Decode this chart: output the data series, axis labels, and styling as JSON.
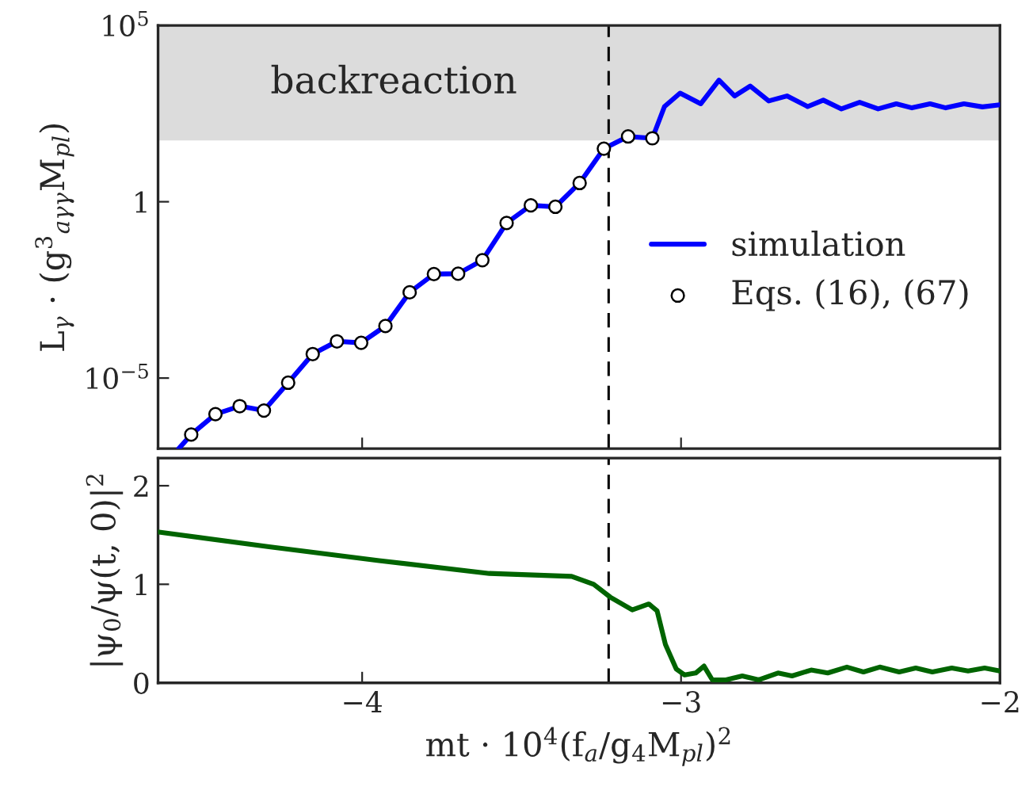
{
  "chart_data": [
    {
      "type": "line",
      "ylabel": "L$_{γ}$ · (g$^{3}$$_{aγγ}$M$_{pl}$)",
      "log": "y",
      "xlim": [
        -4.64,
        -2
      ],
      "xticks": [
        -4,
        -3,
        -2
      ],
      "ylim": [
        1e-07,
        100000
      ],
      "yticks": [
        {
          "value": 1e-05,
          "label": "10$^{−5}$"
        },
        1,
        {
          "value": 100000,
          "label": "10$^{5}$"
        }
      ],
      "tick_labels": "y",
      "legend": "right",
      "grid": false,
      "bands": [
        {
          "axis": "y",
          "from": 55,
          "to": 100000,
          "label": "backreaction",
          "color": "#dcdcdc"
        }
      ],
      "ref_lines": [
        {
          "axis": "x",
          "value": -3.227,
          "color": "#000000",
          "line_style": "dashed"
        }
      ],
      "series": [
        {
          "name": "simulation",
          "color": "#0000ff",
          "x": [
            -4.575,
            -4.536,
            -4.46,
            -4.384,
            -4.308,
            -4.232,
            -4.155,
            -4.079,
            -4.003,
            -3.927,
            -3.851,
            -3.775,
            -3.699,
            -3.623,
            -3.547,
            -3.471,
            -3.394,
            -3.318,
            -3.242,
            -3.166,
            -3.09,
            -3.052,
            -3.003,
            -2.938,
            -2.881,
            -2.832,
            -2.783,
            -2.725,
            -2.668,
            -2.603,
            -2.554,
            -2.497,
            -2.44,
            -2.382,
            -2.325,
            -2.276,
            -2.219,
            -2.17,
            -2.113,
            -2.055,
            -2.0
          ],
          "values": [
            1e-07,
            2.5e-07,
            9.5e-07,
            1.6e-06,
            1.2e-06,
            7.4e-06,
            4.8e-05,
            0.00011,
            0.0001,
            0.0003,
            0.0027,
            0.0089,
            0.0091,
            0.022,
            0.25,
            0.79,
            0.72,
            3.4,
            32,
            71,
            63,
            500,
            1200,
            600,
            2800,
            1000,
            1900,
            720,
            1000,
            500,
            760,
            430,
            660,
            430,
            600,
            460,
            600,
            460,
            600,
            490,
            560
          ]
        },
        {
          "name": "Eqs. (16), (67)",
          "type": "scatter",
          "marker": "circle",
          "color": "#ffffff",
          "x": [
            -4.536,
            -4.46,
            -4.384,
            -4.308,
            -4.232,
            -4.155,
            -4.079,
            -4.003,
            -3.927,
            -3.851,
            -3.775,
            -3.699,
            -3.623,
            -3.547,
            -3.471,
            -3.394,
            -3.318,
            -3.242,
            -3.166,
            -3.09
          ],
          "values": [
            2.5e-07,
            9.5e-07,
            1.6e-06,
            1.2e-06,
            7.4e-06,
            4.8e-05,
            0.00011,
            0.0001,
            0.0003,
            0.0027,
            0.0089,
            0.0091,
            0.022,
            0.25,
            0.79,
            0.72,
            3.4,
            32,
            71,
            63
          ]
        }
      ]
    },
    {
      "type": "line",
      "xlabel": "mt · 10$^{4}$(f$_{a}$/g$_{4}$M$_{pl}$)$^{2}$",
      "ylabel": "|ψ$_{0}$/ψ(t, 0)|$^{2}$",
      "xlim": [
        -4.64,
        -2
      ],
      "xticks": [
        {
          "value": -4,
          "label": "−4"
        },
        {
          "value": -3,
          "label": "−3"
        },
        {
          "value": -2,
          "label": "−2"
        }
      ],
      "ylim": [
        0,
        2.28
      ],
      "yticks": [
        0,
        1,
        2
      ],
      "grid": false,
      "ref_lines": [
        {
          "axis": "x",
          "value": -3.227,
          "color": "#000000",
          "line_style": "dashed"
        }
      ],
      "series": [
        {
          "color": "#006400",
          "x": [
            -4.637,
            -4.292,
            -3.947,
            -3.601,
            -3.343,
            -3.274,
            -3.222,
            -3.153,
            -3.101,
            -3.075,
            -3.049,
            -3.015,
            -2.989,
            -2.954,
            -2.928,
            -2.902,
            -2.859,
            -2.808,
            -2.756,
            -2.696,
            -2.652,
            -2.592,
            -2.54,
            -2.48,
            -2.428,
            -2.377,
            -2.316,
            -2.264,
            -2.212,
            -2.151,
            -2.1,
            -2.048,
            -2.0
          ],
          "values": [
            1.53,
            1.38,
            1.24,
            1.11,
            1.08,
            1.0,
            0.87,
            0.74,
            0.8,
            0.73,
            0.39,
            0.14,
            0.08,
            0.1,
            0.17,
            0.03,
            0.03,
            0.07,
            0.03,
            0.1,
            0.07,
            0.13,
            0.1,
            0.16,
            0.11,
            0.16,
            0.11,
            0.15,
            0.11,
            0.15,
            0.12,
            0.15,
            0.12
          ]
        }
      ]
    }
  ]
}
